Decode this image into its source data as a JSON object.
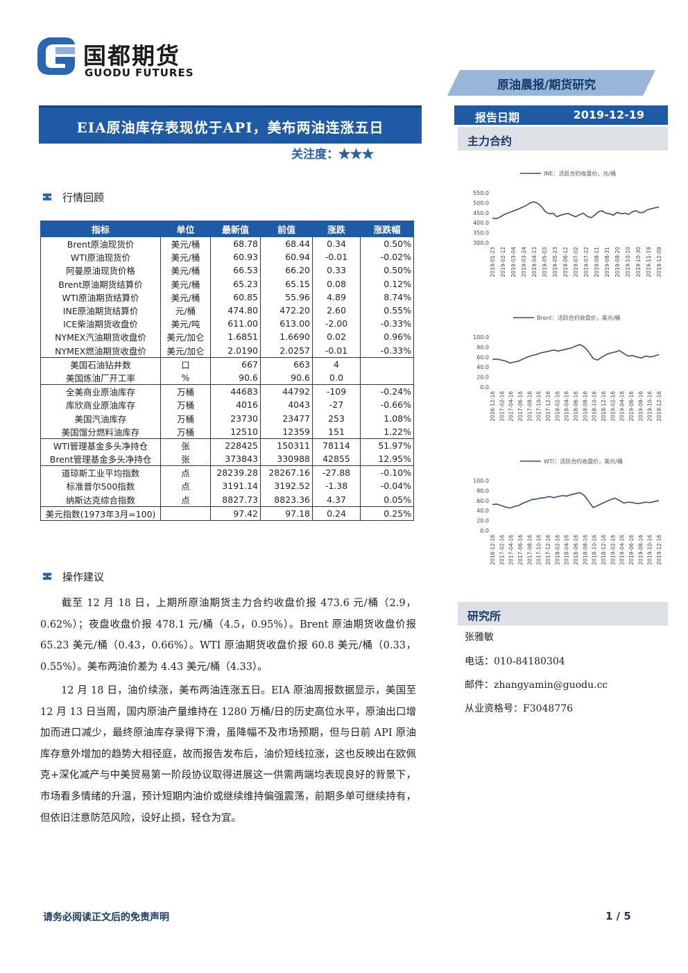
{
  "logo": {
    "cn": "国都期货",
    "en": "GUODU FUTURES"
  },
  "banner": "原油晨报/期货研究",
  "title": "EIA原油库存表现优于API，美布两油连涨五日",
  "attention": "关注度：★★★",
  "report_date": {
    "label": "报告日期",
    "value": "2019-12-19"
  },
  "main_contract": "主力合约",
  "section1": "行情回顾",
  "section2": "操作建议",
  "table": {
    "headers": [
      "指标",
      "单位",
      "最新值",
      "前值",
      "涨跌",
      "涨跌幅"
    ],
    "rows": [
      [
        "Brent原油现货价",
        "美元/桶",
        "68.78",
        "68.44",
        "0.34",
        "0.50%"
      ],
      [
        "WTI原油现货价",
        "美元/桶",
        "60.93",
        "60.94",
        "-0.01",
        "-0.02%"
      ],
      [
        "阿曼原油现货价格",
        "美元/桶",
        "66.53",
        "66.20",
        "0.33",
        "0.50%"
      ],
      [
        "Brent原油期货结算价",
        "美元/桶",
        "65.23",
        "65.15",
        "0.08",
        "0.12%"
      ],
      [
        "WTI原油期货结算价",
        "美元/桶",
        "60.85",
        "55.96",
        "4.89",
        "8.74%"
      ],
      [
        "INE原油期货结算价",
        "元/桶",
        "474.80",
        "472.20",
        "2.60",
        "0.55%"
      ],
      [
        "ICE柴油期货收盘价",
        "美元/吨",
        "611.00",
        "613.00",
        "-2.00",
        "-0.33%"
      ],
      [
        "NYMEX汽油期货收盘价",
        "美元/加仑",
        "1.6851",
        "1.6690",
        "0.02",
        "0.96%"
      ],
      [
        "NYMEX燃油期货收盘价",
        "美元/加仑",
        "2.0190",
        "2.0257",
        "-0.01",
        "-0.33%"
      ],
      [
        "美国石油钻井数",
        "口",
        "667",
        "663",
        "4",
        ""
      ],
      [
        "美国炼油厂开工率",
        "%",
        "90.6",
        "90.6",
        "0.0",
        ""
      ],
      [
        "全美商业原油库存",
        "万桶",
        "44683",
        "44792",
        "-109",
        "-0.24%"
      ],
      [
        "库欣商业原油库存",
        "万桶",
        "4016",
        "4043",
        "-27",
        "-0.66%"
      ],
      [
        "美国汽油库存",
        "万桶",
        "23730",
        "23477",
        "253",
        "1.08%"
      ],
      [
        "美国馏分燃料油库存",
        "万桶",
        "12510",
        "12359",
        "151",
        "1.22%"
      ],
      [
        "WTI管理基金多头净持仓",
        "张",
        "228425",
        "150311",
        "78114",
        "51.97%"
      ],
      [
        "Brent管理基金多头净持仓",
        "张",
        "373843",
        "330988",
        "42855",
        "12.95%"
      ],
      [
        "道琼斯工业平均指数",
        "点",
        "28239.28",
        "28267.16",
        "-27.88",
        "-0.10%"
      ],
      [
        "标准普尔500指数",
        "点",
        "3191.14",
        "3192.52",
        "-1.38",
        "-0.04%"
      ],
      [
        "纳斯达克综合指数",
        "点",
        "8827.73",
        "8823.36",
        "4.37",
        "0.05%"
      ],
      [
        "美元指数(1973年3月=100)",
        "",
        "97.42",
        "97.18",
        "0.24",
        "0.25%"
      ]
    ]
  },
  "paragraph1": "截至 12 月 18 日，上期所原油期货主力合约收盘价报 473.6 元/桶（2.9，0.62%）；夜盘收盘价报 478.1 元/桶（4.5，0.95%）。Brent 原油期货收盘价报 65.23 美元/桶（0.43，0.66%）。WTI 原油期货收盘价报 60.8 美元/桶（0.33，0.55%）。美布两油价差为 4.43 美元/桶（4.33）。",
  "paragraph2": "12 月 18 日，油价续涨，美布两油连涨五日。EIA 原油周报数据显示，美国至 12 月 13 日当周，国内原油产量维持在 1280 万桶/日的历史高位水平，原油出口增加而进口减少，最终原油库存录得下滑，虽降幅不及市场预期，但与日前 API 原油库存意外增加的趋势大相径庭，故而报告发布后，油价短线拉涨，这也反映出在欧佩克+深化减产与中美贸易第一阶段协议取得进展这一供需两端均表现良好的背景下，市场看多情绪的升温，预计短期内油价或继续维持偏强震荡，前期多单可继续持有，但依旧注意防范风险，设好止损，轻仓为宜。",
  "research": {
    "head": "研究所",
    "name": "张雅敏",
    "phone": "电话：010-84180304",
    "email": "邮件：zhangyamin@guodu.cc",
    "license": "从业资格号：F3048776"
  },
  "footer": {
    "disclaimer": "请务必阅读正文后的免责声明",
    "page": "1 / 5"
  },
  "colors": {
    "accent": "#1f5aa6",
    "line": "#2d4f7c"
  },
  "chart_data": [
    {
      "type": "line",
      "legend": "INE：活跃合约收盘价，元/桶",
      "ylim": [
        300,
        550
      ],
      "yticks": [
        "550.0",
        "500.0",
        "450.0",
        "400.0",
        "350.0",
        "300.0"
      ],
      "xticks": [
        "2019-01-23",
        "2019-02-12",
        "2019-03-04",
        "2019-03-24",
        "2019-04-13",
        "2019-05-03",
        "2019-05-23",
        "2019-06-12",
        "2019-07-02",
        "2019-07-22",
        "2019-08-11",
        "2019-08-31",
        "2019-09-20",
        "2019-10-10",
        "2019-10-30",
        "2019-11-19",
        "2019-12-09"
      ],
      "values": [
        423,
        420,
        428,
        440,
        448,
        455,
        462,
        470,
        478,
        487,
        500,
        505,
        497,
        480,
        455,
        445,
        448,
        430,
        438,
        443,
        447,
        438,
        430,
        440,
        448,
        433,
        425,
        437,
        455,
        460,
        448,
        445,
        438,
        452,
        445,
        448,
        442,
        455,
        460,
        450,
        453,
        465,
        470,
        475,
        478
      ]
    },
    {
      "type": "line",
      "legend": "Brent：活跃合约收盘价，美元/桶",
      "ylim": [
        0,
        100
      ],
      "yticks": [
        "100.0",
        "80.0",
        "60.0",
        "40.0",
        "20.0",
        "0.0"
      ],
      "xticks": [
        "2016-12-16",
        "2017-02-16",
        "2017-04-16",
        "2017-06-16",
        "2017-08-16",
        "2017-10-16",
        "2017-12-16",
        "2018-02-16",
        "2018-04-16",
        "2018-06-16",
        "2018-08-16",
        "2018-10-16",
        "2018-12-16",
        "2019-02-16",
        "2019-04-16",
        "2019-06-16",
        "2019-08-16",
        "2019-10-16",
        "2019-12-16"
      ],
      "values": [
        55,
        56,
        54,
        52,
        48,
        50,
        52,
        56,
        60,
        63,
        65,
        68,
        70,
        72,
        74,
        72,
        74,
        76,
        78,
        82,
        85,
        80,
        70,
        57,
        54,
        60,
        65,
        68,
        70,
        73,
        67,
        62,
        63,
        60,
        58,
        62,
        60,
        62,
        65
      ]
    },
    {
      "type": "line",
      "legend": "WTI：活跃合约收盘价，美元/桶",
      "ylim": [
        0,
        100
      ],
      "yticks": [
        "100.0",
        "80.0",
        "60.0",
        "40.0",
        "20.0",
        "0.0"
      ],
      "xticks": [
        "2016-12-16",
        "2017-02-16",
        "2017-04-16",
        "2017-06-16",
        "2017-08-16",
        "2017-10-16",
        "2017-12-16",
        "2018-02-16",
        "2018-04-16",
        "2018-06-16",
        "2018-08-16",
        "2018-10-16",
        "2018-12-16",
        "2019-02-16",
        "2019-04-16",
        "2019-06-16",
        "2019-08-16",
        "2019-10-16",
        "2019-12-16"
      ],
      "values": [
        52,
        53,
        50,
        47,
        45,
        48,
        50,
        55,
        58,
        62,
        63,
        65,
        66,
        68,
        66,
        68,
        70,
        69,
        72,
        74,
        76,
        70,
        58,
        46,
        50,
        54,
        58,
        62,
        65,
        60,
        55,
        57,
        56,
        54,
        55,
        57,
        56,
        58,
        60
      ]
    }
  ]
}
